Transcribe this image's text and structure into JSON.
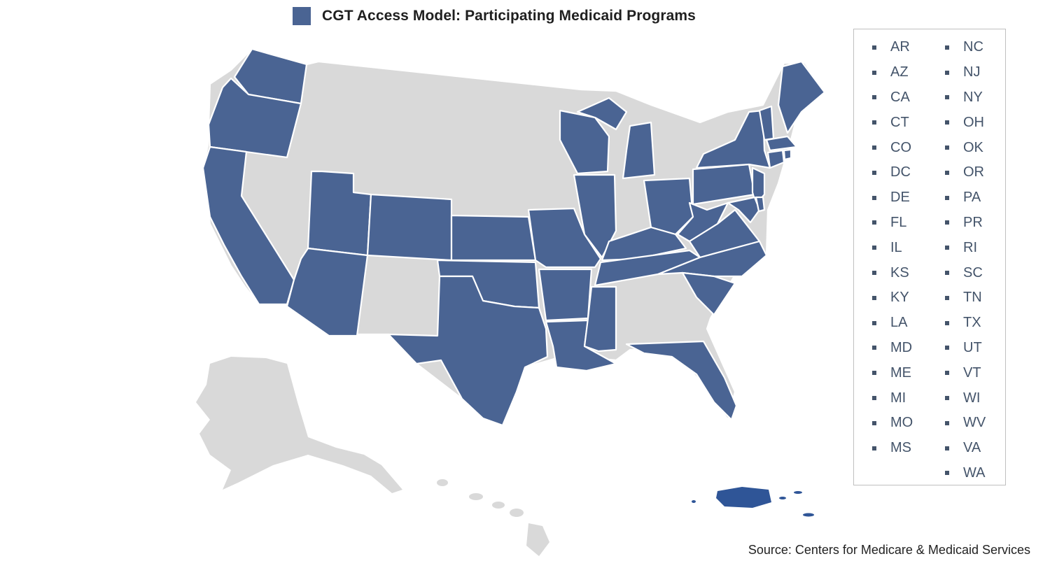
{
  "title": "CGT Access Model: Participating Medicaid Programs",
  "colors": {
    "participating": "#4a6493",
    "participating_pr": "#2f5597",
    "non_participating": "#d9d9d9",
    "legend_text": "#44546a"
  },
  "participating_states": {
    "column_1": [
      "AR",
      "AZ",
      "CA",
      "CT",
      "CO",
      "DC",
      "DE",
      "FL",
      "IL",
      "KS",
      "KY",
      "LA",
      "MD",
      "ME",
      "MI",
      "MO",
      "MS"
    ],
    "column_2": [
      "NC",
      "NJ",
      "NY",
      "OH",
      "OK",
      "OR",
      "PA",
      "PR",
      "RI",
      "SC",
      "TN",
      "TX",
      "UT",
      "VT",
      "WI",
      "WV",
      "VA",
      "WA"
    ]
  },
  "source": "Source: Centers for Medicare & Medicaid Services"
}
